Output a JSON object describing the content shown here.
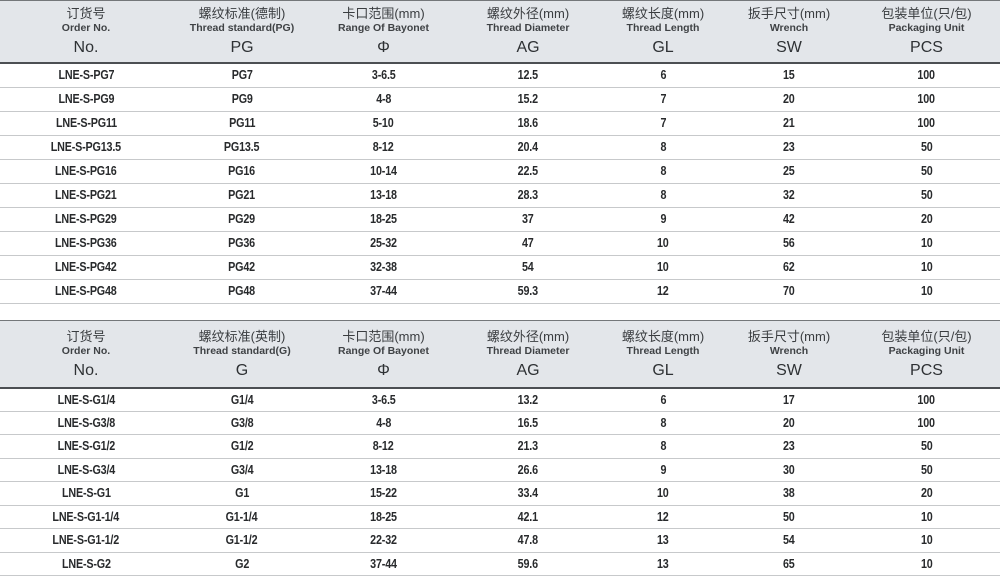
{
  "colors": {
    "header_bg": "#e3e6ea",
    "header_rule_dark": "#4c4f53",
    "row_rule": "#c7c9cb",
    "data_text": "#282a2c"
  },
  "tables": [
    {
      "id": "pg",
      "name": "metric-pg-thread-table",
      "columns": [
        {
          "key": "order-no",
          "cn": "订货号",
          "en": "Order No.",
          "symbol": "No."
        },
        {
          "key": "thread-standard",
          "cn": "螺纹标准(德制)",
          "en": "Thread standard(PG)",
          "symbol": "PG"
        },
        {
          "key": "bayonet-range",
          "cn": "卡口范围(mm)",
          "en": "Range Of Bayonet",
          "symbol": "Φ"
        },
        {
          "key": "thread-diameter",
          "cn": "螺纹外径(mm)",
          "en": "Thread Diameter",
          "symbol": "AG"
        },
        {
          "key": "thread-length",
          "cn": "螺纹长度(mm)",
          "en": "Thread Length",
          "symbol": "GL"
        },
        {
          "key": "wrench-size",
          "cn": "扳手尺寸(mm)",
          "en": "Wrench",
          "symbol": "SW"
        },
        {
          "key": "packaging-unit",
          "cn": "包装单位(只/包)",
          "en": "Packaging Unit",
          "symbol": "PCS"
        }
      ],
      "rows": [
        [
          "LNE-S-PG7",
          "PG7",
          "3-6.5",
          "12.5",
          "6",
          "15",
          "100"
        ],
        [
          "LNE-S-PG9",
          "PG9",
          "4-8",
          "15.2",
          "7",
          "20",
          "100"
        ],
        [
          "LNE-S-PG11",
          "PG11",
          "5-10",
          "18.6",
          "7",
          "21",
          "100"
        ],
        [
          "LNE-S-PG13.5",
          "PG13.5",
          "8-12",
          "20.4",
          "8",
          "23",
          "50"
        ],
        [
          "LNE-S-PG16",
          "PG16",
          "10-14",
          "22.5",
          "8",
          "25",
          "50"
        ],
        [
          "LNE-S-PG21",
          "PG21",
          "13-18",
          "28.3",
          "8",
          "32",
          "50"
        ],
        [
          "LNE-S-PG29",
          "PG29",
          "18-25",
          "37",
          "9",
          "42",
          "20"
        ],
        [
          "LNE-S-PG36",
          "PG36",
          "25-32",
          "47",
          "10",
          "56",
          "10"
        ],
        [
          "LNE-S-PG42",
          "PG42",
          "32-38",
          "54",
          "10",
          "62",
          "10"
        ],
        [
          "LNE-S-PG48",
          "PG48",
          "37-44",
          "59.3",
          "12",
          "70",
          "10"
        ]
      ]
    },
    {
      "id": "g",
      "name": "imperial-g-thread-table",
      "columns": [
        {
          "key": "order-no",
          "cn": "订货号",
          "en": "Order No.",
          "symbol": "No."
        },
        {
          "key": "thread-standard",
          "cn": "螺纹标准(英制)",
          "en": "Thread standard(G)",
          "symbol": "G"
        },
        {
          "key": "bayonet-range",
          "cn": "卡口范围(mm)",
          "en": "Range Of Bayonet",
          "symbol": "Φ"
        },
        {
          "key": "thread-diameter",
          "cn": "螺纹外径(mm)",
          "en": "Thread Diameter",
          "symbol": "AG"
        },
        {
          "key": "thread-length",
          "cn": "螺纹长度(mm)",
          "en": "Thread Length",
          "symbol": "GL"
        },
        {
          "key": "wrench-size",
          "cn": "扳手尺寸(mm)",
          "en": "Wrench",
          "symbol": "SW"
        },
        {
          "key": "packaging-unit",
          "cn": "包装单位(只/包)",
          "en": "Packaging Unit",
          "symbol": "PCS"
        }
      ],
      "rows": [
        [
          "LNE-S-G1/4",
          "G1/4",
          "3-6.5",
          "13.2",
          "6",
          "17",
          "100"
        ],
        [
          "LNE-S-G3/8",
          "G3/8",
          "4-8",
          "16.5",
          "8",
          "20",
          "100"
        ],
        [
          "LNE-S-G1/2",
          "G1/2",
          "8-12",
          "21.3",
          "8",
          "23",
          "50"
        ],
        [
          "LNE-S-G3/4",
          "G3/4",
          "13-18",
          "26.6",
          "9",
          "30",
          "50"
        ],
        [
          "LNE-S-G1",
          "G1",
          "15-22",
          "33.4",
          "10",
          "38",
          "20"
        ],
        [
          "LNE-S-G1-1/4",
          "G1-1/4",
          "18-25",
          "42.1",
          "12",
          "50",
          "10"
        ],
        [
          "LNE-S-G1-1/2",
          "G1-1/2",
          "22-32",
          "47.8",
          "13",
          "54",
          "10"
        ],
        [
          "LNE-S-G2",
          "G2",
          "37-44",
          "59.6",
          "13",
          "65",
          "10"
        ]
      ]
    }
  ]
}
